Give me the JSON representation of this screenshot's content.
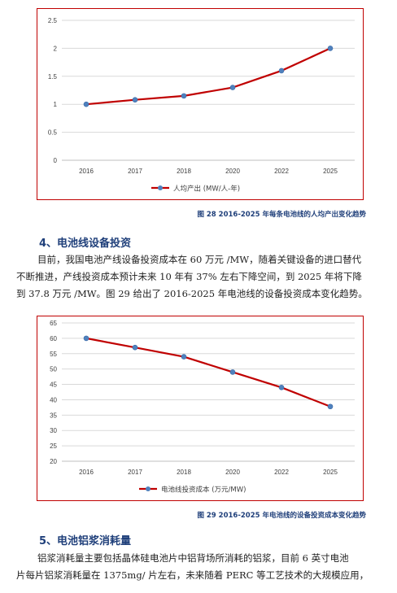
{
  "charts": [
    {
      "chart_data": {
        "type": "line",
        "categories": [
          "2016",
          "2017",
          "2018",
          "2020",
          "2022",
          "2025"
        ],
        "series": [
          {
            "name": "人均产出 (MW/人-年)",
            "values": [
              1.0,
              1.08,
              1.15,
              1.3,
              1.6,
              2.0
            ],
            "color": "#c00000"
          }
        ],
        "yticks": [
          "0",
          "0.5",
          "1",
          "1.5",
          "2",
          "2.5"
        ],
        "ylim": [
          0,
          2.5
        ],
        "grid": true,
        "legend": "bottom"
      },
      "legend_label": "人均产出 (MW/人-年)"
    },
    {
      "chart_data": {
        "type": "line",
        "categories": [
          "2016",
          "2017",
          "2018",
          "2020",
          "2022",
          "2025"
        ],
        "series": [
          {
            "name": "电池线投资成本 (万元/MW)",
            "values": [
              60,
              57,
              54,
              49,
              44,
              37.8
            ],
            "color": "#c00000"
          }
        ],
        "yticks": [
          "20",
          "25",
          "30",
          "35",
          "40",
          "45",
          "50",
          "55",
          "60",
          "65"
        ],
        "ylim": [
          20,
          65
        ],
        "grid": true,
        "legend": "bottom"
      },
      "legend_label": "电池线投资成本 (万元/MW)"
    }
  ],
  "captions": {
    "fig28": "图 28 2016-2025 年每条电池线的人均产出变化趋势",
    "fig29": "图 29 2016-2025 年电池线的设备投资成本变化趋势"
  },
  "headings": {
    "h4": "4、电池线设备投资",
    "h5": "5、电池铝浆消耗量"
  },
  "paragraphs": {
    "p1": [
      "目前，我国电池产线设备投资成本在 60 万元 /MW，随着关键设备的进口替代",
      "不断推进，产线投资成本预计未来 10 年有 37% 左右下降空间，到 2025 年将下降",
      "到 37.8 万元 /MW。图 29 给出了 2016-2025 年电池线的设备投资成本变化趋势。"
    ],
    "p2": [
      "铝浆消耗量主要包括晶体硅电池片中铝背场所消耗的铝浆，目前 6 英寸电池",
      "片每片铝浆消耗量在 1375mg/ 片左右，未来随着 PERC 等工艺技术的大规模应用，"
    ]
  },
  "colors": {
    "accent": "#c00000",
    "marker": "#4f81bd",
    "heading": "#1f3f7a"
  }
}
